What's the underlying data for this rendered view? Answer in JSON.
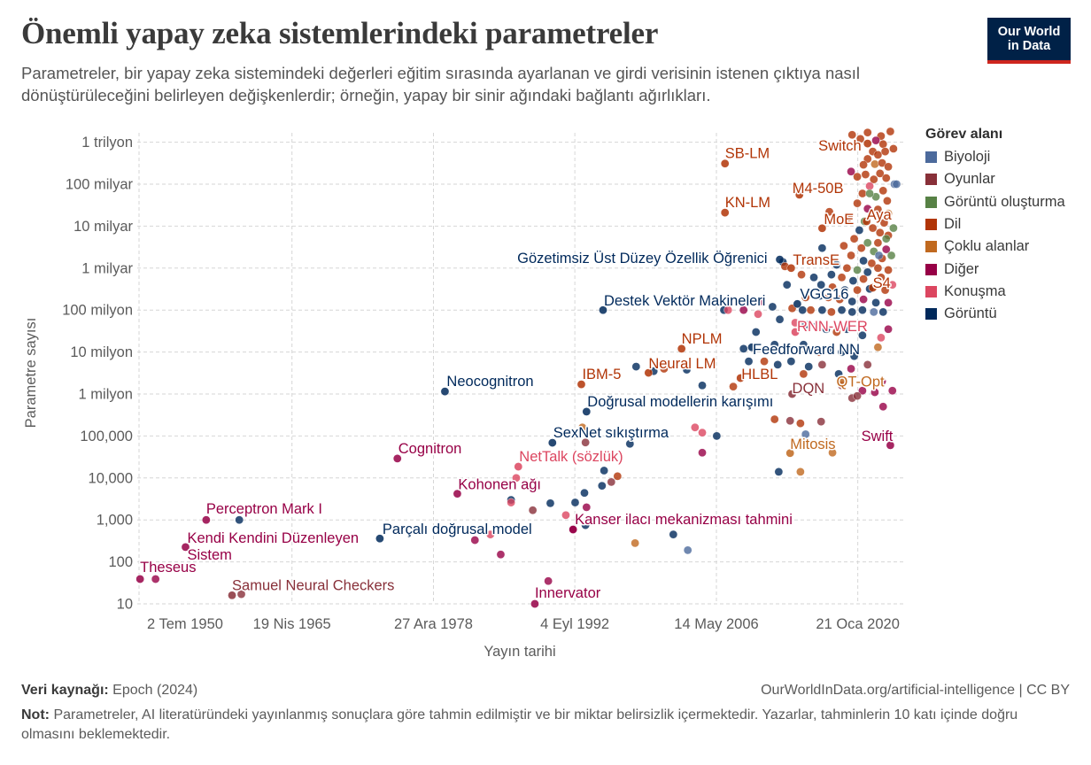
{
  "header": {
    "title": "Önemli yapay zeka sistemlerindeki parametreler",
    "subtitle": "Parametreler, bir yapay zeka sistemindeki değerleri eğitim sırasında ayarlanan ve girdi verisinin istenen çıktıya nasıl dönüştürüleceğini belirleyen değişkenlerdir; örneğin, yapay bir sinir ağındaki bağlantı ağırlıkları.",
    "logo_line1": "Our World",
    "logo_line2": "in Data"
  },
  "legend": {
    "title": "Görev alanı",
    "categories": [
      {
        "name": "Biyoloji",
        "color": "#4C6A9C"
      },
      {
        "name": "Oyunlar",
        "color": "#883039"
      },
      {
        "name": "Görüntü oluşturma",
        "color": "#578145"
      },
      {
        "name": "Dil",
        "color": "#B13507"
      },
      {
        "name": "Çoklu alanlar",
        "color": "#C0691F"
      },
      {
        "name": "Diğer",
        "color": "#970046"
      },
      {
        "name": "Konuşma",
        "color": "#DC4660"
      },
      {
        "name": "Görüntü",
        "color": "#00295B"
      }
    ]
  },
  "footer": {
    "source_label": "Veri kaynağı:",
    "source": "Epoch (2024)",
    "url": "OurWorldInData.org/artificial-intelligence | CC BY",
    "note_label": "Not:",
    "note": "Parametreler, AI literatüründeki yayınlanmış sonuçlara göre tahmin edilmiştir ve bir miktar belirsizlik içermektedir. Yazarlar, tahminlerin 10 katı içinde doğru olmasını beklemektedir."
  },
  "chart_data": {
    "type": "scatter",
    "title": "Önemli yapay zeka sistemlerindeki parametreler",
    "xlabel": "Yayın tarihi",
    "ylabel": "Parametre sayısı",
    "y_scale": "log",
    "ylim": [
      10,
      1000000000000
    ],
    "xlim": [
      1949.3,
      2024.4
    ],
    "grid": true,
    "legend_position": "right",
    "x_ticks": [
      {
        "value": 1950.5,
        "label": "2 Tem 1950"
      },
      {
        "value": 1965.3,
        "label": "19 Nis 1965"
      },
      {
        "value": 1978.99,
        "label": "27 Ara 1978"
      },
      {
        "value": 1992.67,
        "label": "4 Eyl 1992"
      },
      {
        "value": 2006.37,
        "label": "14 May 2006"
      },
      {
        "value": 2020.05,
        "label": "21 Oca 2020"
      }
    ],
    "y_ticks": [
      {
        "value": 1000000000000,
        "label": "1 trilyon"
      },
      {
        "value": 100000000000,
        "label": "100 milyar"
      },
      {
        "value": 10000000000,
        "label": "10 milyar"
      },
      {
        "value": 1000000000,
        "label": "1 milyar"
      },
      {
        "value": 100000000,
        "label": "100 milyon"
      },
      {
        "value": 10000000,
        "label": "10 milyon"
      },
      {
        "value": 1000000,
        "label": "1 milyon"
      },
      {
        "value": 100000,
        "label": "100,000"
      },
      {
        "value": 10000,
        "label": "10,000"
      },
      {
        "value": 1000,
        "label": "1,000"
      },
      {
        "value": 100,
        "label": "100"
      },
      {
        "value": 10,
        "label": "10"
      }
    ],
    "labeled_points": [
      {
        "label": "Theseus",
        "x": 1950.6,
        "y": 39,
        "category": 5
      },
      {
        "label": "Samuel Neural Checkers",
        "x": 1959.5,
        "y": 16,
        "category": 1
      },
      {
        "label": "Perceptron Mark I",
        "x": 1957.0,
        "y": 1000,
        "category": 5
      },
      {
        "label": "Kendi Kendini Düzenleyen Sistem",
        "x": 1955.0,
        "y": 225,
        "category": 5
      },
      {
        "label": "Parçalı doğrusal model",
        "x": 1973.8,
        "y": 360,
        "category": 7
      },
      {
        "label": "Cognitron",
        "x": 1975.5,
        "y": 29000,
        "category": 5
      },
      {
        "label": "Neocognitron",
        "x": 1980.1,
        "y": 1150000,
        "category": 7
      },
      {
        "label": "Kohonen ağı",
        "x": 1981.3,
        "y": 4200,
        "category": 5
      },
      {
        "label": "NetTalk (sözlük)",
        "x": 1987.2,
        "y": 18600,
        "category": 6
      },
      {
        "label": "SexNet sıkıştırma",
        "x": 1990.5,
        "y": 69000,
        "category": 7
      },
      {
        "label": "Innervator",
        "x": 1988.8,
        "y": 10,
        "category": 5
      },
      {
        "label": "IBM-5",
        "x": 1993.3,
        "y": 1700000,
        "category": 3
      },
      {
        "label": "Doğrusal modellerin karışımı",
        "x": 1993.8,
        "y": 380000,
        "category": 7
      },
      {
        "label": "Kanser ilacı mekanizması tahmini",
        "x": 1992.5,
        "y": 590,
        "category": 5
      },
      {
        "label": "Neural LM",
        "x": 1999.8,
        "y": 3200000,
        "category": 3
      },
      {
        "label": "NPLM",
        "x": 2003.0,
        "y": 12000000,
        "category": 3
      },
      {
        "label": "Destek Vektör Makineleri",
        "x": 1995.4,
        "y": 100000000,
        "category": 7
      },
      {
        "label": "Gözetimsiz Üst Düzey Özellik Öğrenici",
        "x": 2012.5,
        "y": 1600000000,
        "category": 7
      },
      {
        "label": "SB-LM",
        "x": 2007.2,
        "y": 310000000000,
        "category": 3
      },
      {
        "label": "KN-LM",
        "x": 2007.2,
        "y": 21000000000,
        "category": 3
      },
      {
        "label": "HLBL",
        "x": 2008.7,
        "y": 2400000,
        "category": 3
      },
      {
        "label": "Feedforward NN",
        "x": 2009.8,
        "y": 13000000,
        "category": 7
      },
      {
        "label": "VGG16",
        "x": 2014.2,
        "y": 140000000,
        "category": 7
      },
      {
        "label": "TransE",
        "x": 2013.6,
        "y": 1000000000,
        "category": 3
      },
      {
        "label": "M4-50B",
        "x": 2014.4,
        "y": 56000000000,
        "category": 3
      },
      {
        "label": "Switch",
        "x": 2021.0,
        "y": 930000000000,
        "category": 3
      },
      {
        "label": "MoE",
        "x": 2016.6,
        "y": 8900000000,
        "category": 3
      },
      {
        "label": "Aya",
        "x": 2020.9,
        "y": 13000000000,
        "category": 3
      },
      {
        "label": "S4",
        "x": 2021.5,
        "y": 340000000,
        "category": 3
      },
      {
        "label": "RNN-WER",
        "x": 2014.0,
        "y": 30000000,
        "category": 6
      },
      {
        "label": "DQN",
        "x": 2013.7,
        "y": 1000000,
        "category": 1
      },
      {
        "label": "QT-Opt",
        "x": 2018.5,
        "y": 2100000,
        "category": 4
      },
      {
        "label": "Mitosis",
        "x": 2013.5,
        "y": 39000,
        "category": 4
      },
      {
        "label": "Swift",
        "x": 2023.2,
        "y": 60000,
        "category": 5
      }
    ],
    "points": [
      [
        1952.1,
        39,
        5
      ],
      [
        1960.4,
        17,
        1
      ],
      [
        1960.2,
        1000,
        7
      ],
      [
        1983,
        330,
        5
      ],
      [
        1984.5,
        450,
        6
      ],
      [
        1985.5,
        150,
        5
      ],
      [
        1986.5,
        3000,
        7
      ],
      [
        1986.5,
        2600,
        6
      ],
      [
        1988.6,
        1700,
        1
      ],
      [
        1987,
        10000,
        6
      ],
      [
        1990.1,
        35,
        5
      ],
      [
        1990.3,
        2500,
        7
      ],
      [
        1991.8,
        1300,
        6
      ],
      [
        1992.5,
        600,
        5
      ],
      [
        1992.7,
        2600,
        7
      ],
      [
        1993.6,
        4400,
        7
      ],
      [
        1993.8,
        2000,
        5
      ],
      [
        1993.7,
        750,
        7
      ],
      [
        1993.4,
        160000,
        4
      ],
      [
        1993.7,
        70000,
        1
      ],
      [
        1995.5,
        15000,
        7
      ],
      [
        1995.3,
        6500,
        7
      ],
      [
        1996.2,
        8000,
        1
      ],
      [
        1996.8,
        11000,
        3
      ],
      [
        1998,
        65000,
        7
      ],
      [
        1998.5,
        280,
        4
      ],
      [
        1998.6,
        4500000,
        7
      ],
      [
        2002.2,
        450,
        7
      ],
      [
        2003.6,
        190,
        0
      ],
      [
        2004.3,
        160000,
        6
      ],
      [
        2005,
        120000,
        6
      ],
      [
        2005,
        40000,
        5
      ],
      [
        2006.4,
        100000,
        7
      ],
      [
        2005,
        1600000,
        7
      ],
      [
        2003.5,
        3800000,
        7
      ],
      [
        2000.3,
        3500000,
        7
      ],
      [
        2001.3,
        4000000,
        3
      ],
      [
        2008,
        1500000,
        3
      ],
      [
        2007.1,
        100000000,
        7
      ],
      [
        2009,
        100000000,
        5
      ],
      [
        2010.4,
        80000000,
        6
      ],
      [
        2012,
        250000,
        3
      ],
      [
        2012.4,
        14000,
        7
      ],
      [
        2013.5,
        230000,
        1
      ],
      [
        2014.5,
        200000,
        3
      ],
      [
        2015,
        110000,
        0
      ],
      [
        2014.5,
        14000,
        4
      ],
      [
        2016.5,
        220000,
        1
      ],
      [
        2017.6,
        40000,
        4
      ],
      [
        2018.5,
        1600000,
        1
      ],
      [
        2019.5,
        800000,
        1
      ],
      [
        2020.5,
        1200000,
        5
      ],
      [
        2022.5,
        500000,
        5
      ],
      [
        2023.4,
        1200000,
        5
      ],
      [
        2019.5,
        1500000000000,
        3
      ],
      [
        2020.3,
        1200000000000,
        3
      ],
      [
        2021,
        1700000000000,
        3
      ],
      [
        2022.3,
        1400000000000,
        3
      ],
      [
        2023.2,
        1800000000000,
        3
      ],
      [
        2021.8,
        1100000000000,
        5
      ],
      [
        2022.5,
        900000000000,
        3
      ],
      [
        2021.5,
        600000000000,
        3
      ],
      [
        2022,
        500000000000,
        3
      ],
      [
        2022.7,
        600000000000,
        3
      ],
      [
        2023.5,
        700000000000,
        3
      ],
      [
        2021,
        400000000000,
        3
      ],
      [
        2020.6,
        290000000000,
        3
      ],
      [
        2021.7,
        300000000000,
        4
      ],
      [
        2022.4,
        320000000000,
        3
      ],
      [
        2023,
        260000000000,
        3
      ],
      [
        2019.4,
        200000000000,
        5
      ],
      [
        2020,
        150000000000,
        3
      ],
      [
        2020.8,
        170000000000,
        3
      ],
      [
        2021.6,
        130000000000,
        3
      ],
      [
        2022.2,
        180000000000,
        3
      ],
      [
        2022.8,
        140000000000,
        3
      ],
      [
        2023.6,
        100000000000,
        0
      ],
      [
        2021.2,
        90000000000,
        6
      ],
      [
        2022.5,
        70000000000,
        3
      ],
      [
        2020.5,
        60000000000,
        3
      ],
      [
        2021.8,
        50000000000,
        2
      ],
      [
        2022.9,
        40000000000,
        3
      ],
      [
        2020,
        35000000000,
        3
      ],
      [
        2021,
        26000000000,
        5
      ],
      [
        2022,
        25000000000,
        3
      ],
      [
        2023,
        20000000000,
        4
      ],
      [
        2019.2,
        16000000000,
        3
      ],
      [
        2020.7,
        13000000000,
        2
      ],
      [
        2022.6,
        12000000000,
        3
      ],
      [
        2021.5,
        9000000000,
        3
      ],
      [
        2020.2,
        8000000000,
        7
      ],
      [
        2022.2,
        7000000000,
        3
      ],
      [
        2023,
        6000000000,
        3
      ],
      [
        2019.7,
        5000000000,
        3
      ],
      [
        2021,
        4000000000,
        2
      ],
      [
        2022,
        4000000000,
        3
      ],
      [
        2022.8,
        5000000000,
        2
      ],
      [
        2018.7,
        3400000000,
        3
      ],
      [
        2020.4,
        3000000000,
        3
      ],
      [
        2021.6,
        2500000000,
        2
      ],
      [
        2022.8,
        2800000000,
        5
      ],
      [
        2019.4,
        2000000000,
        3
      ],
      [
        2020.6,
        1500000000,
        7
      ],
      [
        2021.4,
        1300000000,
        3
      ],
      [
        2022.4,
        1700000000,
        3
      ],
      [
        2023.3,
        2000000000,
        2
      ],
      [
        2018,
        1200000000,
        7
      ],
      [
        2019,
        1000000000,
        3
      ],
      [
        2020,
        900000000,
        2
      ],
      [
        2021,
        800000000,
        7
      ],
      [
        2022,
        1000000000,
        3
      ],
      [
        2023,
        900000000,
        3
      ],
      [
        2017.5,
        700000000,
        7
      ],
      [
        2018.5,
        600000000,
        3
      ],
      [
        2019.6,
        500000000,
        7
      ],
      [
        2020.6,
        550000000,
        3
      ],
      [
        2022.3,
        600000000,
        3
      ],
      [
        2016.5,
        400000000,
        7
      ],
      [
        2017.6,
        350000000,
        3
      ],
      [
        2018.8,
        300000000,
        7
      ],
      [
        2020,
        300000000,
        3
      ],
      [
        2021.2,
        320000000,
        7
      ],
      [
        2022.7,
        300000000,
        3
      ],
      [
        2015,
        200000000,
        3
      ],
      [
        2016.4,
        220000000,
        7
      ],
      [
        2017.2,
        200000000,
        3
      ],
      [
        2018.3,
        180000000,
        3
      ],
      [
        2019.5,
        160000000,
        7
      ],
      [
        2020.6,
        180000000,
        5
      ],
      [
        2021.8,
        150000000,
        7
      ],
      [
        2023,
        150000000,
        5
      ],
      [
        2013.7,
        110000000,
        3
      ],
      [
        2014.7,
        100000000,
        7
      ],
      [
        2015.5,
        100000000,
        3
      ],
      [
        2016.6,
        100000000,
        7
      ],
      [
        2017.5,
        90000000,
        3
      ],
      [
        2018.5,
        100000000,
        7
      ],
      [
        2019.5,
        90000000,
        7
      ],
      [
        2020.5,
        100000000,
        7
      ],
      [
        2021.6,
        90000000,
        0
      ],
      [
        2022.5,
        90000000,
        7
      ],
      [
        2012.5,
        60000000,
        7
      ],
      [
        2014,
        50000000,
        6
      ],
      [
        2015,
        45000000,
        7
      ],
      [
        2016,
        40000000,
        7
      ],
      [
        2017,
        35000000,
        7
      ],
      [
        2018,
        30000000,
        3
      ],
      [
        2019,
        35000000,
        7
      ],
      [
        2020.5,
        25000000,
        7
      ],
      [
        2022.3,
        22000000,
        6
      ],
      [
        2023,
        35000000,
        5
      ],
      [
        2012,
        15000000,
        7
      ],
      [
        2013.3,
        12000000,
        7
      ],
      [
        2014.8,
        15000000,
        7
      ],
      [
        2016.3,
        10000000,
        3
      ],
      [
        2017.4,
        12000000,
        7
      ],
      [
        2018.5,
        10000000,
        7
      ],
      [
        2019.7,
        8000000,
        7
      ],
      [
        2022,
        13000000,
        4
      ],
      [
        2011,
        6000000,
        3
      ],
      [
        2012.3,
        5000000,
        7
      ],
      [
        2013.6,
        6000000,
        7
      ],
      [
        2015.3,
        4500000,
        7
      ],
      [
        2016.6,
        5000000,
        1
      ],
      [
        2018.2,
        3000000,
        7
      ],
      [
        2019.4,
        4000000,
        5
      ],
      [
        2021,
        5000000,
        1
      ],
      [
        2014.8,
        3000000,
        3
      ],
      [
        2016,
        1500000,
        6
      ],
      [
        2020,
        900000,
        1
      ],
      [
        2021.7,
        1100000,
        5
      ],
      [
        2022.4,
        2000000,
        5
      ],
      [
        2009.5,
        6000000,
        7
      ],
      [
        2009,
        12000000,
        7
      ],
      [
        2010.2,
        30000000,
        7
      ],
      [
        2011.8,
        120000000,
        7
      ],
      [
        2012.8,
        1400000000,
        7
      ],
      [
        2010.6,
        160000000,
        5
      ],
      [
        2008.8,
        160000000,
        6
      ],
      [
        2007.5,
        100000000,
        6
      ],
      [
        2013,
        1100000000,
        3
      ],
      [
        2016.6,
        3000000000,
        7
      ],
      [
        2017.3,
        22000000000,
        3
      ],
      [
        2014.6,
        700000000,
        3
      ],
      [
        2013.2,
        400000000,
        7
      ],
      [
        2015.8,
        600000000,
        7
      ],
      [
        2023.8,
        100000000000,
        0
      ],
      [
        2023.5,
        9000000000,
        2
      ],
      [
        2023.4,
        400000000,
        6
      ],
      [
        2021.2,
        60000000000,
        2
      ],
      [
        2022.1,
        2000000000,
        0
      ]
    ]
  }
}
